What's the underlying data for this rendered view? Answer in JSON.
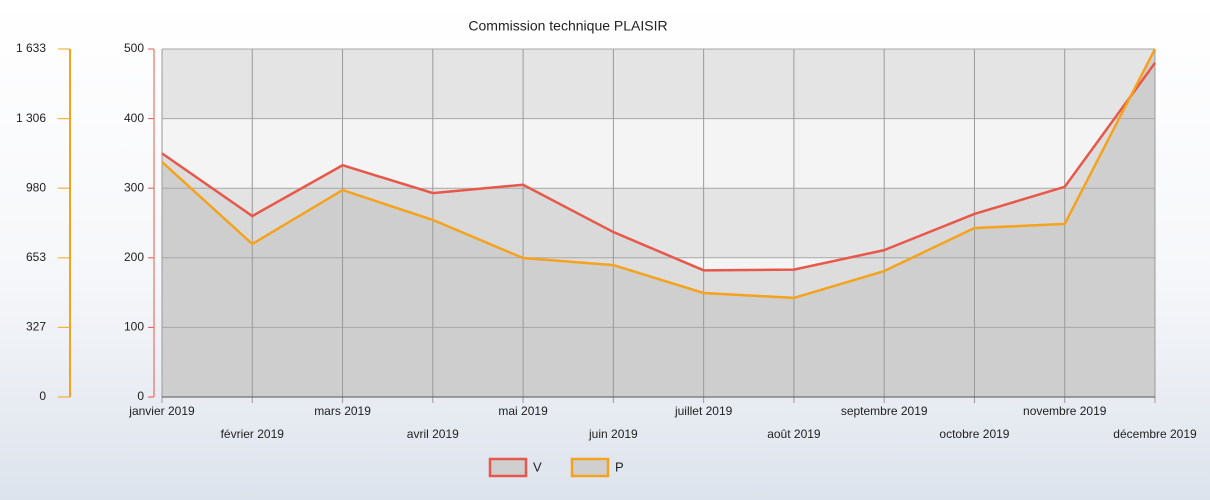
{
  "chart_data": {
    "type": "line",
    "title": "Commission technique PLAISIR",
    "categories": [
      "janvier 2019",
      "février 2019",
      "mars 2019",
      "avril 2019",
      "mai 2019",
      "juin 2019",
      "juillet 2019",
      "août 2019",
      "septembre 2019",
      "octobre 2019",
      "novembre 2019",
      "décembre 2019"
    ],
    "series": [
      {
        "name": "V",
        "color": "#e8584a",
        "values": [
          350,
          260,
          333,
          293,
          305,
          237,
          182,
          183,
          211,
          263,
          302,
          480
        ]
      },
      {
        "name": "P",
        "color": "#f5a21c",
        "axis": "y2",
        "values": [
          1103,
          718,
          971,
          831,
          652,
          619,
          488,
          465,
          591,
          793,
          812,
          1633
        ]
      }
    ],
    "ylim": [
      0,
      500
    ],
    "yticks": [
      0,
      100,
      200,
      300,
      400,
      500
    ],
    "y2lim": [
      0,
      1633
    ],
    "y2ticks": [
      0,
      327,
      653,
      980,
      {
        "value": 1306,
        "label": "1 306"
      },
      {
        "value": 1633,
        "label": "1 633"
      }
    ],
    "grid": true
  }
}
